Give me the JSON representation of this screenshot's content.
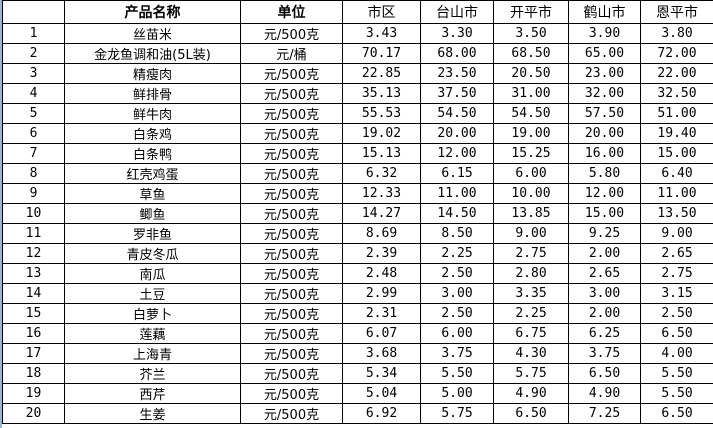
{
  "headers": [
    "",
    "产品名称",
    "单位",
    "市区",
    "台山市",
    "开平市",
    "鹤山市",
    "恩平市"
  ],
  "rows": [
    {
      "no": "1",
      "name": "丝苗米",
      "unit": "元/500克",
      "prices": [
        "3.43",
        "3.30",
        "3.50",
        "3.90",
        "3.80"
      ]
    },
    {
      "no": "2",
      "name": "金龙鱼调和油(5L装)",
      "unit": "元/桶",
      "prices": [
        "70.17",
        "68.00",
        "68.50",
        "65.00",
        "72.00"
      ]
    },
    {
      "no": "3",
      "name": "精瘦肉",
      "unit": "元/500克",
      "prices": [
        "22.85",
        "23.50",
        "20.50",
        "23.00",
        "22.00"
      ]
    },
    {
      "no": "4",
      "name": "鲜排骨",
      "unit": "元/500克",
      "prices": [
        "35.13",
        "37.50",
        "31.00",
        "32.00",
        "32.50"
      ]
    },
    {
      "no": "5",
      "name": "鲜牛肉",
      "unit": "元/500克",
      "prices": [
        "55.53",
        "54.50",
        "54.50",
        "57.50",
        "51.00"
      ]
    },
    {
      "no": "6",
      "name": "白条鸡",
      "unit": "元/500克",
      "prices": [
        "19.02",
        "20.00",
        "19.00",
        "20.00",
        "19.40"
      ]
    },
    {
      "no": "7",
      "name": "白条鸭",
      "unit": "元/500克",
      "prices": [
        "15.13",
        "12.00",
        "15.25",
        "16.00",
        "15.00"
      ]
    },
    {
      "no": "8",
      "name": "红壳鸡蛋",
      "unit": "元/500克",
      "prices": [
        "6.32",
        "6.15",
        "6.00",
        "5.80",
        "6.40"
      ]
    },
    {
      "no": "9",
      "name": "草鱼",
      "unit": "元/500克",
      "prices": [
        "12.33",
        "11.00",
        "10.00",
        "12.00",
        "11.00"
      ]
    },
    {
      "no": "10",
      "name": "鲫鱼",
      "unit": "元/500克",
      "prices": [
        "14.27",
        "14.50",
        "13.85",
        "15.00",
        "13.50"
      ]
    },
    {
      "no": "11",
      "name": "罗非鱼",
      "unit": "元/500克",
      "prices": [
        "8.69",
        "8.50",
        "9.00",
        "9.25",
        "9.00"
      ]
    },
    {
      "no": "12",
      "name": "青皮冬瓜",
      "unit": "元/500克",
      "prices": [
        "2.39",
        "2.25",
        "2.75",
        "2.00",
        "2.65"
      ]
    },
    {
      "no": "13",
      "name": "南瓜",
      "unit": "元/500克",
      "prices": [
        "2.48",
        "2.50",
        "2.80",
        "2.65",
        "2.75"
      ]
    },
    {
      "no": "14",
      "name": "土豆",
      "unit": "元/500克",
      "prices": [
        "2.99",
        "3.00",
        "3.35",
        "3.00",
        "3.15"
      ]
    },
    {
      "no": "15",
      "name": "白萝卜",
      "unit": "元/500克",
      "prices": [
        "2.31",
        "2.50",
        "2.25",
        "2.00",
        "2.50"
      ]
    },
    {
      "no": "16",
      "name": "莲藕",
      "unit": "元/500克",
      "prices": [
        "6.07",
        "6.00",
        "6.75",
        "6.25",
        "6.50"
      ]
    },
    {
      "no": "17",
      "name": "上海青",
      "unit": "元/500克",
      "prices": [
        "3.68",
        "3.75",
        "4.30",
        "3.75",
        "4.00"
      ]
    },
    {
      "no": "18",
      "name": "芥兰",
      "unit": "元/500克",
      "prices": [
        "5.34",
        "5.50",
        "5.75",
        "6.50",
        "5.50"
      ]
    },
    {
      "no": "19",
      "name": "西芹",
      "unit": "元/500克",
      "prices": [
        "5.04",
        "5.00",
        "4.90",
        "4.90",
        "5.50"
      ]
    },
    {
      "no": "20",
      "name": "生姜",
      "unit": "元/500克",
      "prices": [
        "6.92",
        "5.75",
        "6.50",
        "7.25",
        "6.50"
      ]
    }
  ]
}
